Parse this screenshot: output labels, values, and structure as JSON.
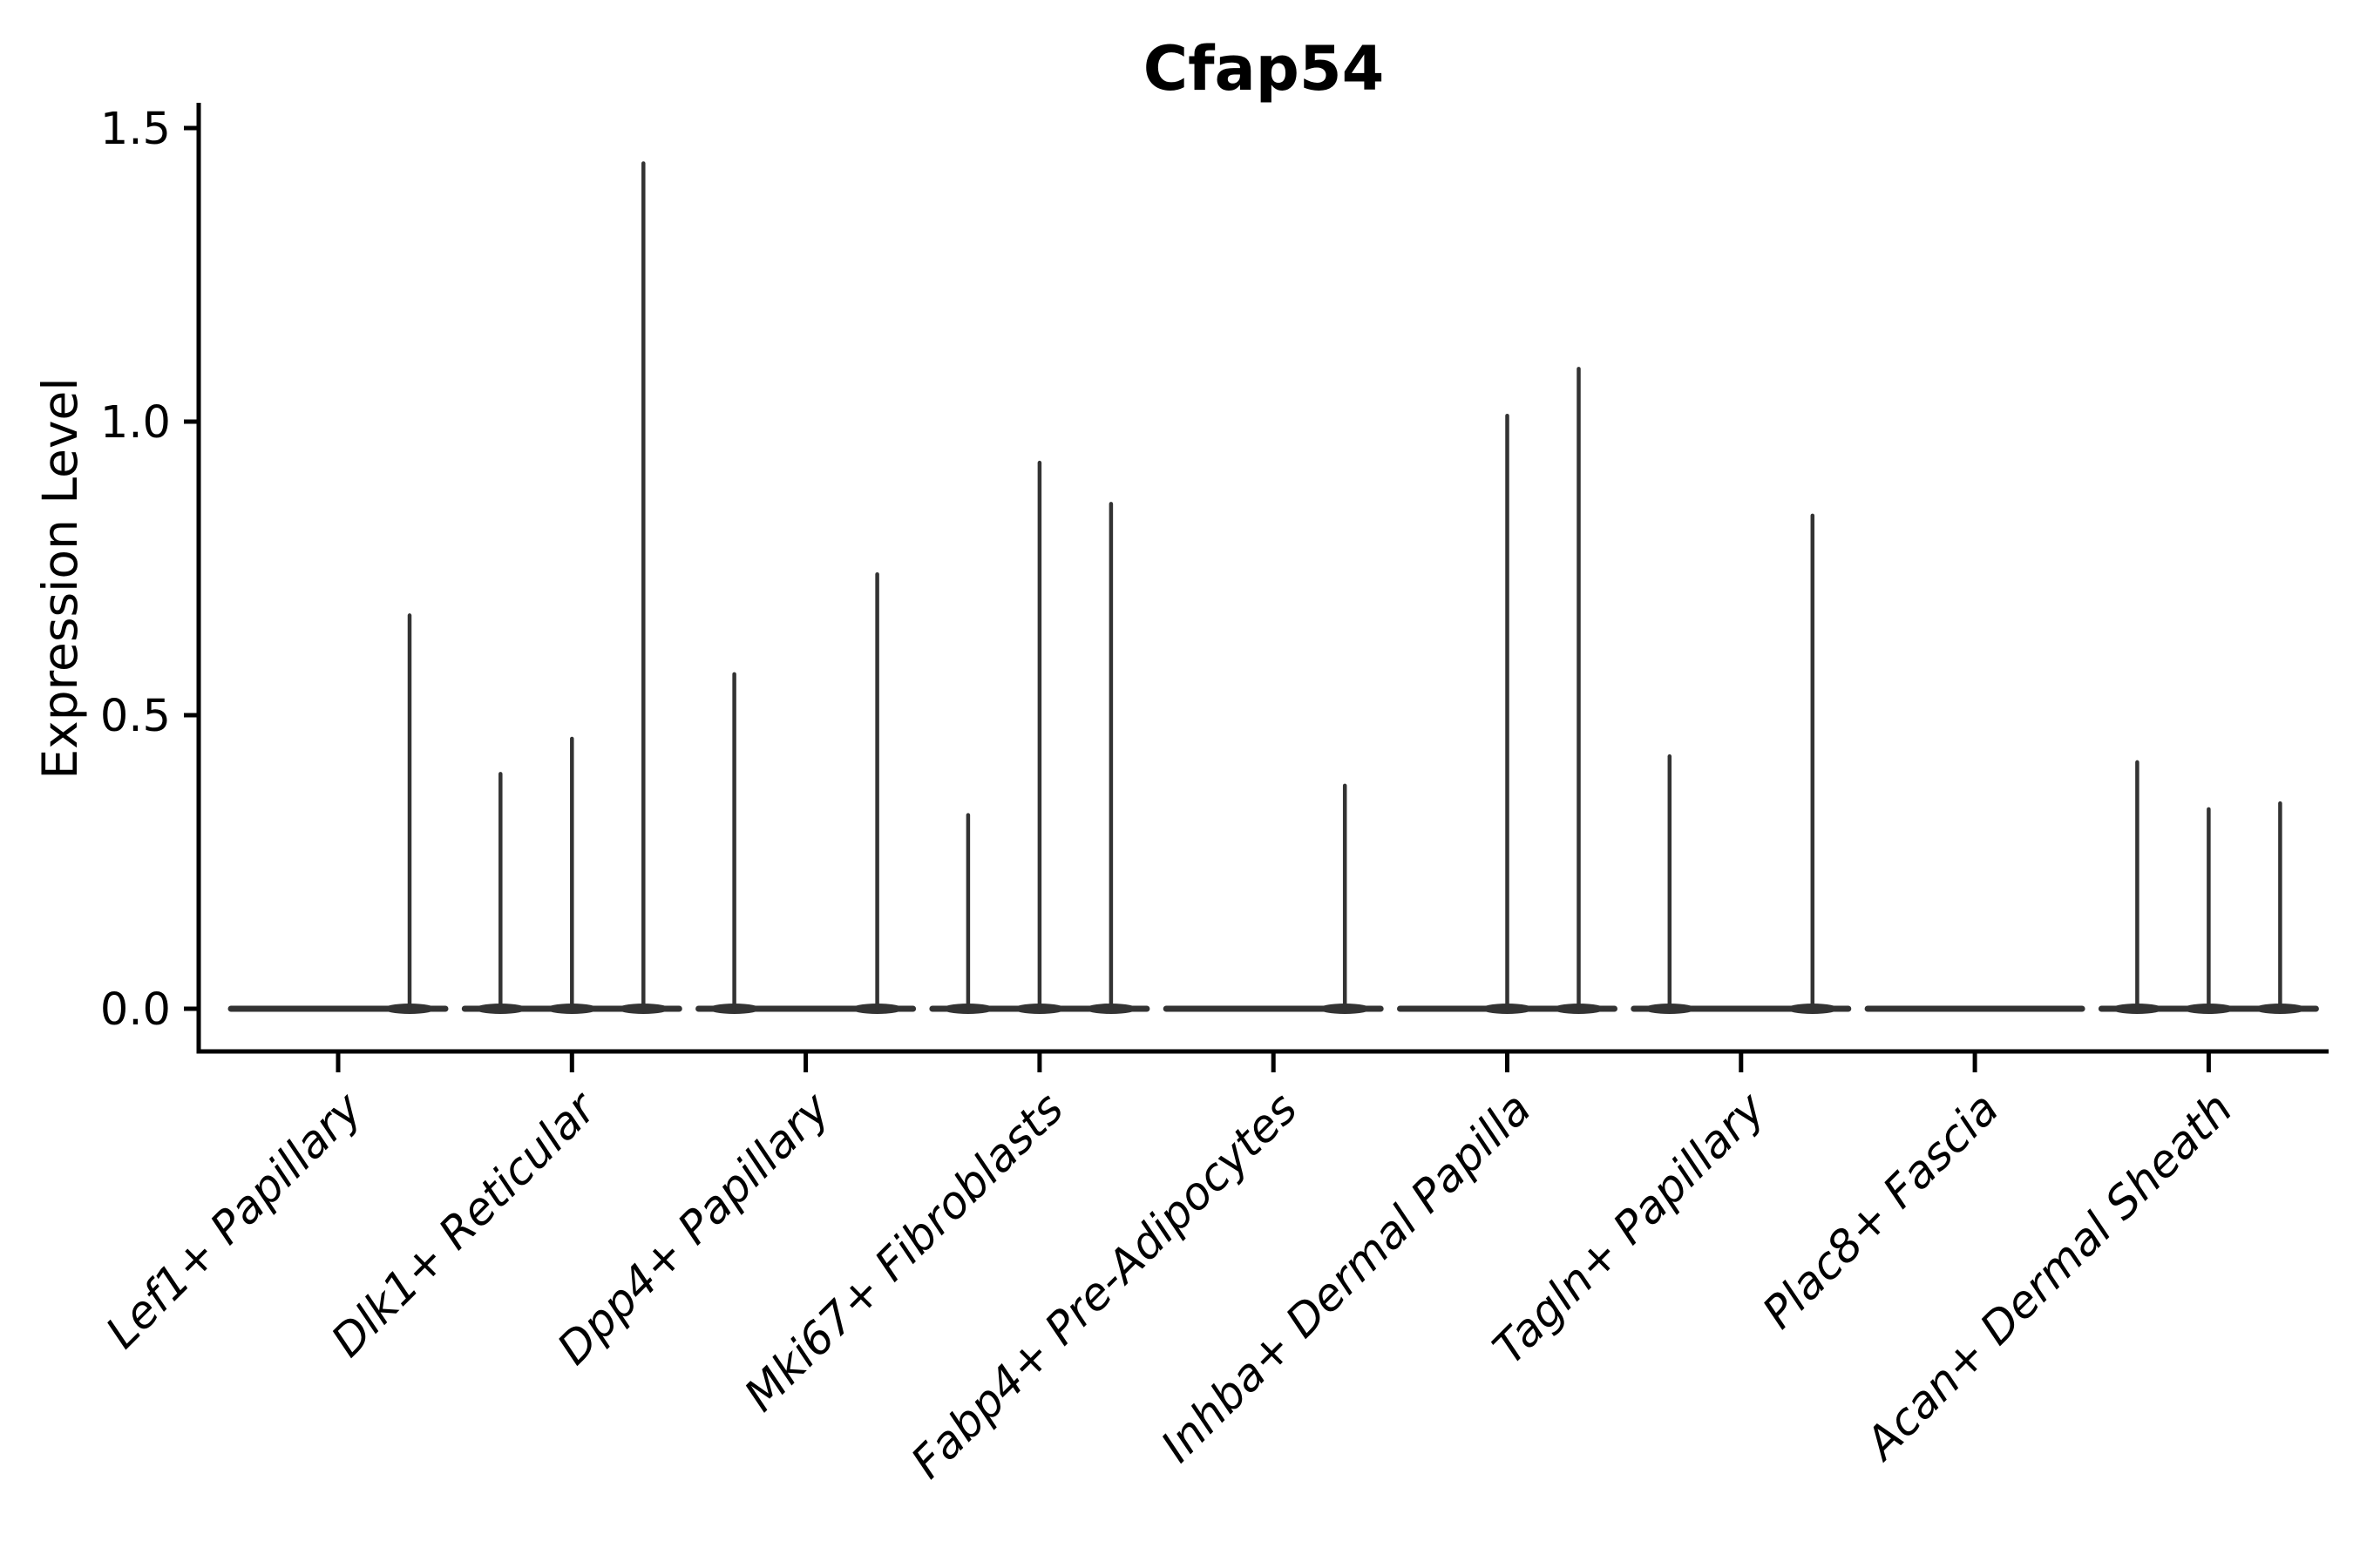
{
  "chart_data": {
    "type": "violin",
    "title": "Cfap54",
    "ylabel": "Expression Level",
    "xlabel": "",
    "legend": null,
    "grid": false,
    "ylim": [
      -0.08,
      1.54
    ],
    "yticks": [
      {
        "label": "0.0",
        "value": 0.0
      },
      {
        "label": "0.5",
        "value": 0.5
      },
      {
        "label": "1.0",
        "value": 1.0
      },
      {
        "label": "1.5",
        "value": 1.5
      }
    ],
    "violins_per_category": 3,
    "categories": [
      {
        "label": "Lef1+ Papillary",
        "violin_max_values": [
          0.0,
          0.0,
          0.67
        ]
      },
      {
        "label": "Dlk1+ Reticular",
        "violin_max_values": [
          0.4,
          0.46,
          1.44
        ]
      },
      {
        "label": "Dpp4+ Papillary",
        "violin_max_values": [
          0.57,
          0.0,
          0.74
        ]
      },
      {
        "label": "Mki67+ Fibroblasts",
        "violin_max_values": [
          0.33,
          0.93,
          0.86
        ]
      },
      {
        "label": "Fabp4+ Pre-Adipocytes",
        "violin_max_values": [
          0.0,
          0.0,
          0.38
        ]
      },
      {
        "label": "Inhba+ Dermal Papilla",
        "violin_max_values": [
          0.0,
          1.01,
          1.09
        ]
      },
      {
        "label": "Tagln+ Papillary",
        "violin_max_values": [
          0.43,
          0.0,
          0.84
        ]
      },
      {
        "label": "Plac8+ Fascia",
        "violin_max_values": [
          0.0,
          0.0,
          0.0
        ]
      },
      {
        "label": "Acan+ Dermal Sheath",
        "violin_max_values": [
          0.42,
          0.34,
          0.35
        ]
      }
    ],
    "colors": {
      "violin": "#333333",
      "axis": "#000000",
      "text": "#000000",
      "background": "#ffffff"
    }
  }
}
